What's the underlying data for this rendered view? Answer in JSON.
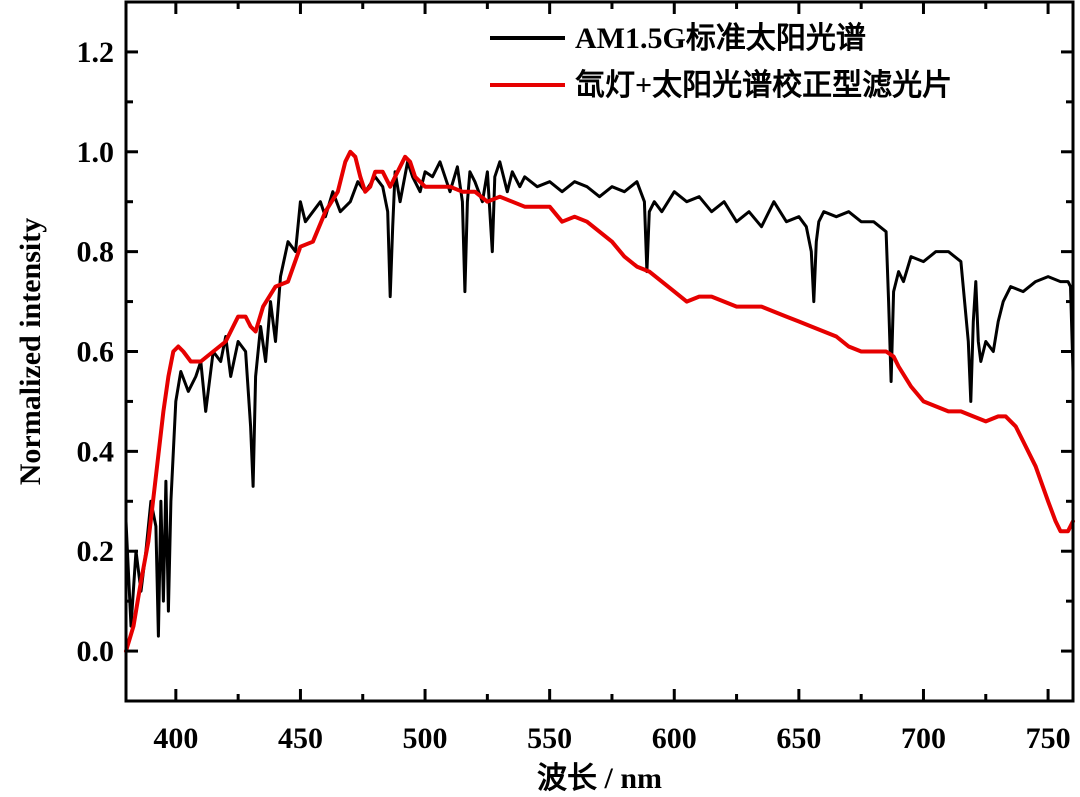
{
  "chart_data": {
    "type": "line",
    "xlabel": "波长 / nm",
    "ylabel": "Normalized intensity",
    "xlim": [
      380,
      760
    ],
    "ylim": [
      -0.1,
      1.3
    ],
    "xticks": [
      400,
      450,
      500,
      550,
      600,
      650,
      700,
      750
    ],
    "xtick_labels": [
      "400",
      "450",
      "500",
      "550",
      "600",
      "650",
      "700",
      "750"
    ],
    "yticks": [
      0.0,
      0.2,
      0.4,
      0.6,
      0.8,
      1.0,
      1.2
    ],
    "ytick_labels": [
      "0.0",
      "0.2",
      "0.4",
      "0.6",
      "0.8",
      "1.0",
      "1.2"
    ],
    "grid": false,
    "legend_position": "top-right",
    "series": [
      {
        "name": "AM1.5G标准太阳光谱",
        "color": "#000000",
        "x": [
          380,
          382,
          384,
          386,
          388,
          390,
          392,
          393,
          394,
          395,
          396,
          397,
          398,
          400,
          402,
          405,
          408,
          410,
          412,
          415,
          418,
          420,
          422,
          425,
          428,
          430,
          431,
          432,
          434,
          436,
          438,
          440,
          442,
          445,
          448,
          450,
          452,
          455,
          458,
          460,
          463,
          466,
          470,
          473,
          476,
          480,
          483,
          485,
          486,
          487,
          488,
          490,
          493,
          495,
          498,
          500,
          503,
          506,
          510,
          513,
          515,
          516,
          517,
          518,
          520,
          523,
          525,
          527,
          528,
          530,
          533,
          535,
          538,
          540,
          545,
          550,
          555,
          560,
          565,
          570,
          575,
          580,
          585,
          588,
          589,
          590,
          592,
          595,
          600,
          605,
          610,
          615,
          620,
          625,
          630,
          635,
          640,
          645,
          650,
          653,
          655,
          656,
          657,
          658,
          660,
          665,
          670,
          675,
          680,
          685,
          686,
          687,
          688,
          690,
          692,
          695,
          700,
          705,
          710,
          715,
          718,
          719,
          720,
          721,
          722,
          723,
          725,
          728,
          730,
          732,
          735,
          740,
          745,
          750,
          755,
          758,
          759,
          760
        ],
        "y": [
          0.26,
          0.05,
          0.2,
          0.12,
          0.2,
          0.3,
          0.25,
          0.03,
          0.3,
          0.1,
          0.34,
          0.08,
          0.3,
          0.5,
          0.56,
          0.52,
          0.55,
          0.58,
          0.48,
          0.6,
          0.58,
          0.63,
          0.55,
          0.62,
          0.6,
          0.45,
          0.33,
          0.55,
          0.65,
          0.58,
          0.7,
          0.62,
          0.75,
          0.82,
          0.8,
          0.9,
          0.86,
          0.88,
          0.9,
          0.87,
          0.92,
          0.88,
          0.9,
          0.94,
          0.92,
          0.95,
          0.93,
          0.88,
          0.71,
          0.85,
          0.96,
          0.9,
          0.98,
          0.95,
          0.92,
          0.96,
          0.95,
          0.98,
          0.92,
          0.97,
          0.9,
          0.72,
          0.9,
          0.96,
          0.94,
          0.9,
          0.96,
          0.8,
          0.95,
          0.98,
          0.92,
          0.96,
          0.93,
          0.95,
          0.93,
          0.94,
          0.92,
          0.94,
          0.93,
          0.91,
          0.93,
          0.92,
          0.94,
          0.9,
          0.76,
          0.88,
          0.9,
          0.88,
          0.92,
          0.9,
          0.91,
          0.88,
          0.9,
          0.86,
          0.88,
          0.85,
          0.9,
          0.86,
          0.87,
          0.85,
          0.8,
          0.7,
          0.82,
          0.86,
          0.88,
          0.87,
          0.88,
          0.86,
          0.86,
          0.84,
          0.7,
          0.54,
          0.72,
          0.76,
          0.74,
          0.79,
          0.78,
          0.8,
          0.8,
          0.78,
          0.62,
          0.5,
          0.66,
          0.74,
          0.62,
          0.58,
          0.62,
          0.6,
          0.66,
          0.7,
          0.73,
          0.72,
          0.74,
          0.75,
          0.74,
          0.74,
          0.73,
          0.56
        ]
      },
      {
        "name": "氙灯+太阳光谱校正型滤光片",
        "color": "#e60000",
        "x": [
          380,
          383,
          386,
          389,
          392,
          395,
          397,
          399,
          401,
          403,
          406,
          410,
          415,
          420,
          425,
          428,
          430,
          432,
          435,
          440,
          445,
          450,
          455,
          460,
          465,
          468,
          470,
          472,
          474,
          476,
          478,
          480,
          483,
          486,
          488,
          490,
          492,
          494,
          496,
          500,
          505,
          510,
          515,
          520,
          525,
          530,
          535,
          540,
          545,
          550,
          555,
          560,
          565,
          570,
          575,
          580,
          585,
          590,
          595,
          600,
          605,
          610,
          615,
          620,
          625,
          630,
          635,
          640,
          645,
          650,
          655,
          660,
          665,
          670,
          675,
          680,
          685,
          688,
          690,
          695,
          700,
          705,
          710,
          715,
          720,
          725,
          730,
          733,
          737,
          740,
          745,
          750,
          753,
          755,
          758,
          760
        ],
        "y": [
          0.0,
          0.05,
          0.14,
          0.22,
          0.35,
          0.48,
          0.55,
          0.6,
          0.61,
          0.6,
          0.58,
          0.58,
          0.6,
          0.62,
          0.67,
          0.67,
          0.65,
          0.64,
          0.69,
          0.73,
          0.74,
          0.81,
          0.82,
          0.88,
          0.92,
          0.98,
          1.0,
          0.99,
          0.95,
          0.92,
          0.93,
          0.96,
          0.96,
          0.93,
          0.95,
          0.97,
          0.99,
          0.98,
          0.95,
          0.93,
          0.93,
          0.93,
          0.92,
          0.92,
          0.9,
          0.91,
          0.9,
          0.89,
          0.89,
          0.89,
          0.86,
          0.87,
          0.86,
          0.84,
          0.82,
          0.79,
          0.77,
          0.76,
          0.74,
          0.72,
          0.7,
          0.71,
          0.71,
          0.7,
          0.69,
          0.69,
          0.69,
          0.68,
          0.67,
          0.66,
          0.65,
          0.64,
          0.63,
          0.61,
          0.6,
          0.6,
          0.6,
          0.59,
          0.57,
          0.53,
          0.5,
          0.49,
          0.48,
          0.48,
          0.47,
          0.46,
          0.47,
          0.47,
          0.45,
          0.42,
          0.37,
          0.3,
          0.26,
          0.24,
          0.24,
          0.26
        ]
      }
    ]
  }
}
